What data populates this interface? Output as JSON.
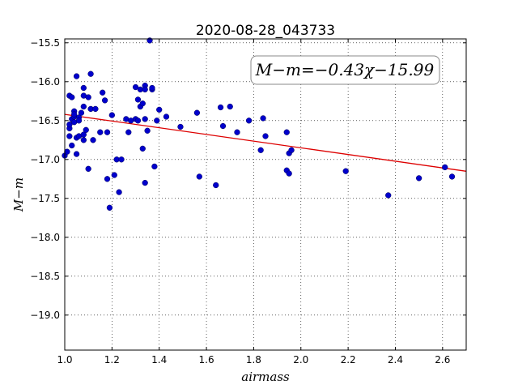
{
  "chart_data": {
    "type": "scatter",
    "title": "2020-08-28_043733",
    "xlabel": "airmass",
    "ylabel": "M−m",
    "xlim": [
      1.0,
      2.7
    ],
    "ylim": [
      -19.45,
      -15.45
    ],
    "y_inverted": true,
    "grid": true,
    "xticks": [
      "1.0",
      "1.2",
      "1.4",
      "1.6",
      "1.8",
      "2.0",
      "2.2",
      "2.4",
      "2.6"
    ],
    "yticks": [
      "−15.5",
      "−16.0",
      "−16.5",
      "−17.0",
      "−17.5",
      "−18.0",
      "−18.5",
      "−19.0"
    ],
    "annotation": "M−m=−0.43χ−15.99",
    "fit": {
      "slope": -0.43,
      "intercept": -15.99,
      "color": "#dd0000"
    },
    "point_color": "#0000cc",
    "points": [
      [
        1.0,
        -16.95
      ],
      [
        1.01,
        -16.9
      ],
      [
        1.02,
        -16.6
      ],
      [
        1.02,
        -16.55
      ],
      [
        1.02,
        -16.7
      ],
      [
        1.02,
        -16.18
      ],
      [
        1.03,
        -16.2
      ],
      [
        1.03,
        -16.82
      ],
      [
        1.03,
        -16.48
      ],
      [
        1.04,
        -16.52
      ],
      [
        1.04,
        -16.45
      ],
      [
        1.04,
        -16.38
      ],
      [
        1.04,
        -16.42
      ],
      [
        1.05,
        -16.72
      ],
      [
        1.05,
        -16.93
      ],
      [
        1.05,
        -15.93
      ],
      [
        1.06,
        -16.46
      ],
      [
        1.06,
        -16.5
      ],
      [
        1.06,
        -16.7
      ],
      [
        1.07,
        -16.4
      ],
      [
        1.08,
        -16.08
      ],
      [
        1.08,
        -16.18
      ],
      [
        1.08,
        -16.32
      ],
      [
        1.08,
        -16.68
      ],
      [
        1.08,
        -16.75
      ],
      [
        1.09,
        -16.62
      ],
      [
        1.1,
        -16.2
      ],
      [
        1.1,
        -17.12
      ],
      [
        1.11,
        -15.9
      ],
      [
        1.11,
        -16.35
      ],
      [
        1.12,
        -16.75
      ],
      [
        1.13,
        -16.35
      ],
      [
        1.15,
        -16.65
      ],
      [
        1.16,
        -16.14
      ],
      [
        1.17,
        -16.24
      ],
      [
        1.18,
        -16.65
      ],
      [
        1.18,
        -17.25
      ],
      [
        1.19,
        -17.62
      ],
      [
        1.2,
        -16.43
      ],
      [
        1.21,
        -17.2
      ],
      [
        1.22,
        -17.0
      ],
      [
        1.23,
        -17.42
      ],
      [
        1.24,
        -17.0
      ],
      [
        1.26,
        -16.48
      ],
      [
        1.27,
        -16.65
      ],
      [
        1.28,
        -16.5
      ],
      [
        1.3,
        -16.07
      ],
      [
        1.3,
        -16.48
      ],
      [
        1.31,
        -16.5
      ],
      [
        1.31,
        -16.23
      ],
      [
        1.32,
        -16.1
      ],
      [
        1.32,
        -16.32
      ],
      [
        1.33,
        -16.28
      ],
      [
        1.33,
        -16.86
      ],
      [
        1.34,
        -16.48
      ],
      [
        1.34,
        -16.05
      ],
      [
        1.34,
        -16.1
      ],
      [
        1.34,
        -17.3
      ],
      [
        1.35,
        -16.63
      ],
      [
        1.36,
        -15.47
      ],
      [
        1.37,
        -16.1
      ],
      [
        1.37,
        -16.08
      ],
      [
        1.38,
        -17.09
      ],
      [
        1.39,
        -16.5
      ],
      [
        1.4,
        -16.36
      ],
      [
        1.43,
        -16.45
      ],
      [
        1.49,
        -16.58
      ],
      [
        1.56,
        -16.4
      ],
      [
        1.57,
        -17.22
      ],
      [
        1.64,
        -17.33
      ],
      [
        1.66,
        -16.33
      ],
      [
        1.67,
        -16.57
      ],
      [
        1.7,
        -16.32
      ],
      [
        1.73,
        -16.65
      ],
      [
        1.78,
        -16.5
      ],
      [
        1.83,
        -16.88
      ],
      [
        1.84,
        -16.47
      ],
      [
        1.85,
        -16.7
      ],
      [
        1.94,
        -16.65
      ],
      [
        1.94,
        -17.14
      ],
      [
        1.95,
        -17.18
      ],
      [
        1.95,
        -16.92
      ],
      [
        1.96,
        -16.88
      ],
      [
        2.19,
        -17.15
      ],
      [
        2.37,
        -17.46
      ],
      [
        2.5,
        -17.24
      ],
      [
        2.61,
        -17.1
      ],
      [
        2.64,
        -17.22
      ]
    ]
  }
}
